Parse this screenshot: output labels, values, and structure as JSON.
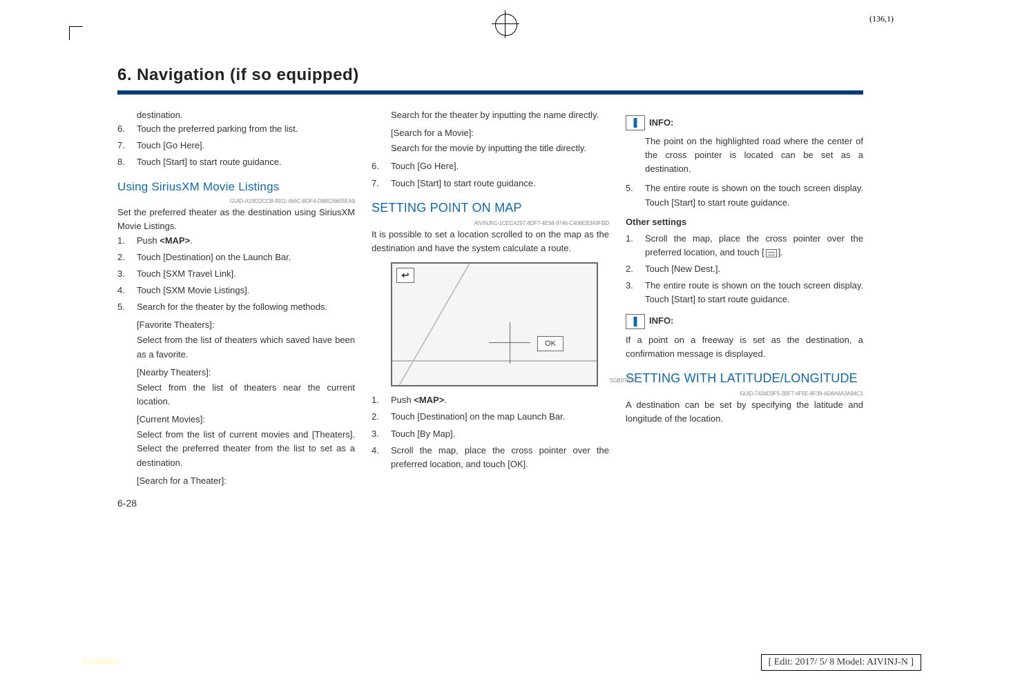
{
  "page_coord": "(136,1)",
  "section_title": "6. Navigation (if so equipped)",
  "title_rule_color": "#003a7a",
  "link_color": "#1068b0",
  "col1": {
    "cont_indent": "destination.",
    "steps": [
      {
        "n": "6.",
        "t": "Touch the preferred parking from the list."
      },
      {
        "n": "7.",
        "t": "Touch [Go Here]."
      },
      {
        "n": "8.",
        "t": "Touch [Start] to start route guidance."
      }
    ],
    "sub_heading": "Using SiriusXM Movie Listings",
    "guid": "GUID-A19CDCCB-9911-466C-BDF4-D68526655EA9",
    "para": "Set the preferred theater as the destination using SiriusXM Movie Listings.",
    "steps2": [
      {
        "n": "1.",
        "t_pre": "Push ",
        "bold": "<MAP>",
        "t_post": "."
      },
      {
        "n": "2.",
        "t": "Touch [Destination] on the Launch Bar."
      },
      {
        "n": "3.",
        "t": "Touch [SXM Travel Link]."
      },
      {
        "n": "4.",
        "t": "Touch [SXM Movie Listings]."
      },
      {
        "n": "5.",
        "t": "Search for the theater by the following methods."
      }
    ],
    "brackets": [
      {
        "label": "[Favorite Theaters]:",
        "body": "Select from the list of theaters which saved have been as a favorite."
      },
      {
        "label": "[Nearby Theaters]:",
        "body": "Select from the list of theaters near the current location."
      },
      {
        "label": "[Current Movies]:",
        "body": "Select from the list of current movies and [Theaters]. Select the preferred theater from the list to set as a destination."
      },
      {
        "label": "[Search for a Theater]:"
      }
    ],
    "page_num": "6-28"
  },
  "col2": {
    "cont1": "Search for the theater by inputting the name directly.",
    "b1_label": "[Search for a Movie]:",
    "b1_body": "Search for the movie by inputting the title directly.",
    "steps": [
      {
        "n": "6.",
        "t": "Touch [Go Here]."
      },
      {
        "n": "7.",
        "t": "Touch [Start] to start route guidance."
      }
    ],
    "heading": "SETTING POINT ON MAP",
    "guid": "AIVINJN1-1CECA297-8DF7-4E58-9746-C408EB3A9FBD",
    "para": "It is possible to set a location scrolled to on the map as the destination and have the system calculate a route.",
    "map_back": "↩",
    "map_ok": "OK",
    "fig_code": "5GB0723X",
    "steps2": [
      {
        "n": "1.",
        "t_pre": "Push ",
        "bold": "<MAP>",
        "t_post": "."
      },
      {
        "n": "2.",
        "t": "Touch [Destination] on the map Launch Bar."
      },
      {
        "n": "3.",
        "t": "Touch [By Map]."
      },
      {
        "n": "4.",
        "t": "Scroll the map, place the cross pointer over the preferred location, and touch [OK]."
      }
    ]
  },
  "col3": {
    "info_label": "INFO:",
    "info_body": "The point on the highlighted road where the center of the cross pointer is located can be set as a destination.",
    "step5": {
      "n": "5.",
      "t": "The entire route is shown on the touch screen display. Touch [Start] to start route guidance."
    },
    "other_settings": "Other settings",
    "steps": [
      {
        "n": "1.",
        "t_pre": "Scroll the map, place the cross pointer over the preferred location, and touch [",
        "t_post": "]."
      },
      {
        "n": "2.",
        "t": "Touch [New Dest.]."
      },
      {
        "n": "3.",
        "t": "The entire route is shown on the touch screen display. Touch [Start] to start route guidance."
      }
    ],
    "info2_label": "INFO:",
    "info2_body": "If a point on a freeway is set as the destination, a confirmation message is displayed.",
    "heading": "SETTING WITH LATITUDE/LONGITUDE",
    "guid": "GUID-7434D3F5-2BF7-4F5E-8F39-AD8A6A3A84C1",
    "para": "A destination can be set by specifying the latitude and longitude of the location."
  },
  "condition": "Condition:",
  "edit_box": "[ Edit: 2017/ 5/ 8   Model: AIVINJ-N ]"
}
